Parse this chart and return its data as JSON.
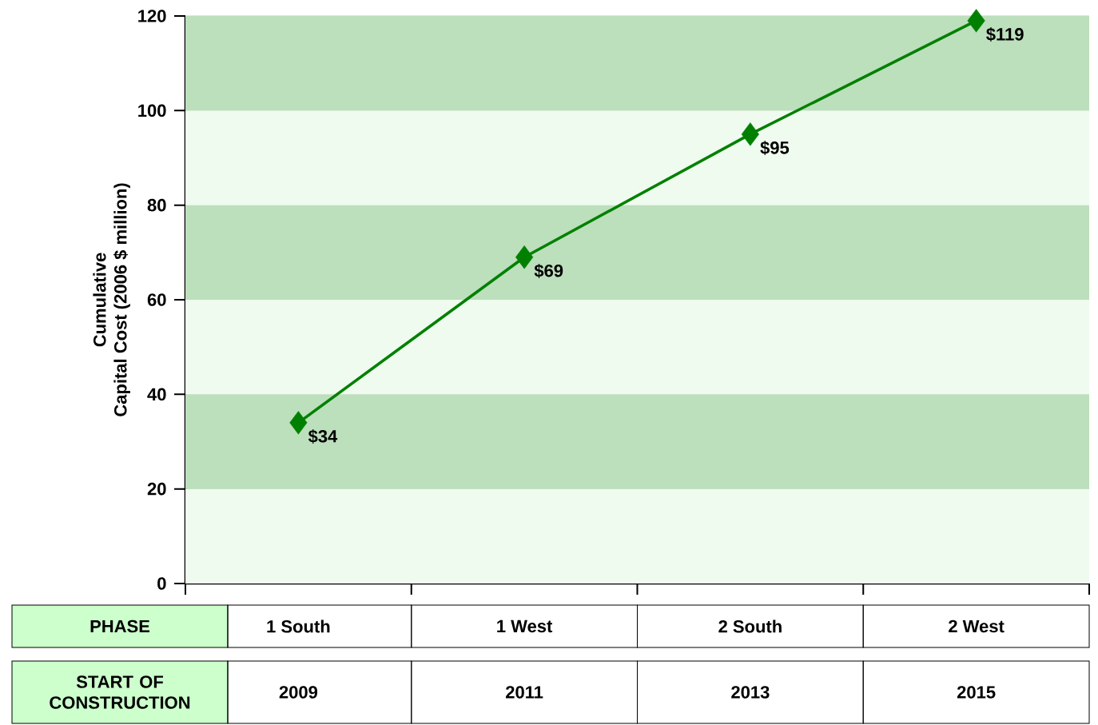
{
  "chart_data": {
    "type": "line",
    "ylabel": "Cumulative Capital Cost (2006 $ million)",
    "categories": [
      "1 South",
      "1 West",
      "2 South",
      "2 West"
    ],
    "values": [
      34,
      69,
      95,
      119
    ],
    "value_labels": [
      "$34",
      "$69",
      "$95",
      "$119"
    ],
    "color": "#008000",
    "marker": "diamond",
    "line_style": "solid",
    "ylim": [
      0,
      120
    ],
    "yticks": [
      0,
      20,
      40,
      60,
      80,
      100,
      120
    ],
    "grid": "y",
    "bands": [
      {
        "axis": "y",
        "from": 0,
        "to": 20,
        "color": "#effbef"
      },
      {
        "axis": "y",
        "from": 20,
        "to": 40,
        "color": "#bcdfbc"
      },
      {
        "axis": "y",
        "from": 40,
        "to": 60,
        "color": "#effbef"
      },
      {
        "axis": "y",
        "from": 60,
        "to": 80,
        "color": "#bcdfbc"
      },
      {
        "axis": "y",
        "from": 80,
        "to": 100,
        "color": "#effbef"
      },
      {
        "axis": "y",
        "from": 100,
        "to": 120,
        "color": "#bcdfbc"
      }
    ],
    "annotations": [
      "PHASE",
      "START OF CONSTRUCTION",
      "2009",
      "2011",
      "2013",
      "2015"
    ]
  }
}
